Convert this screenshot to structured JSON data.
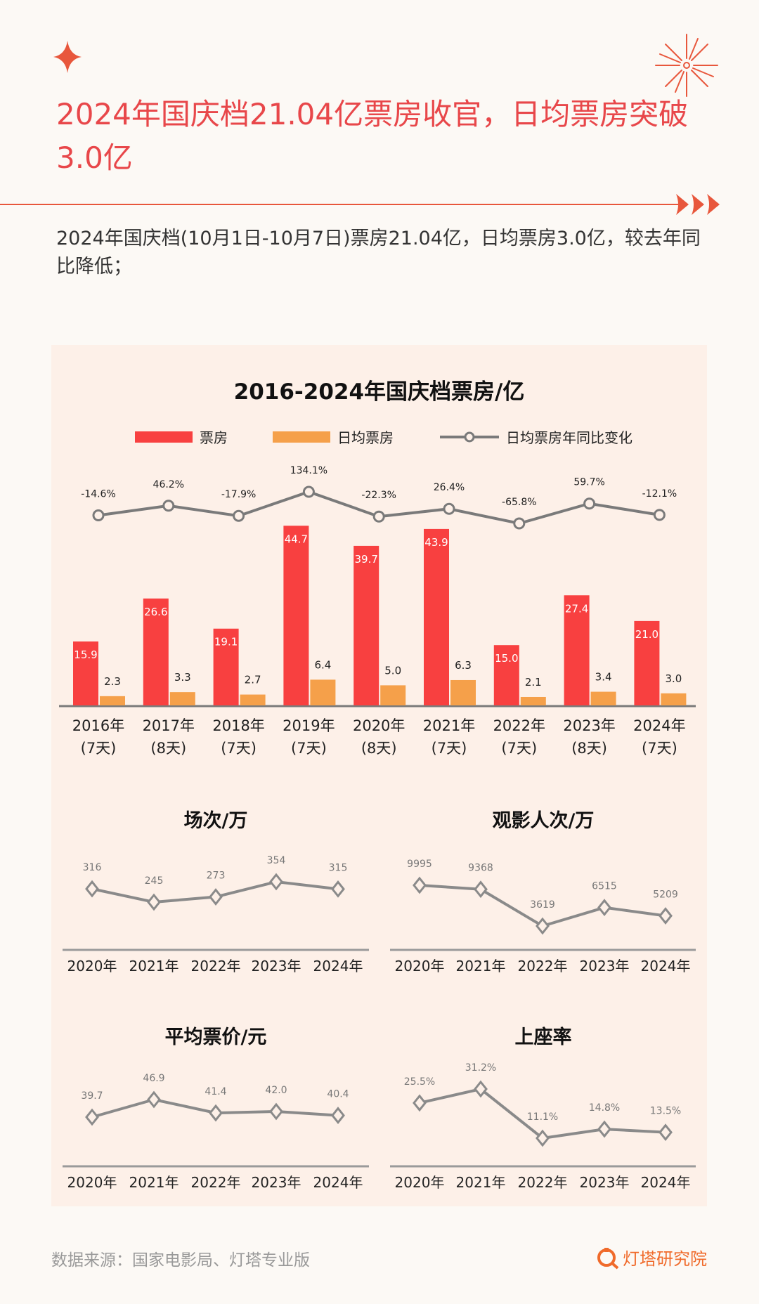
{
  "header": {
    "title": "2024年国庆档21.04亿票房收官，日均票房突破3.0亿",
    "subtitle": "2024年国庆档(10月1日-10月7日)票房21.04亿，日均票房3.0亿，较去年同比降低；"
  },
  "colors": {
    "accent": "#e8474a",
    "bar_total": "#f84040",
    "bar_daily": "#f5a04a",
    "line": "#7a7a7a",
    "panel": "#fdf0e8"
  },
  "chart_data": [
    {
      "type": "bar",
      "title": "2016-2024年国庆档票房/亿",
      "legend": [
        "票房",
        "日均票房",
        "日均票房年同比变化"
      ],
      "categories": [
        "2016年",
        "2017年",
        "2018年",
        "2019年",
        "2020年",
        "2021年",
        "2022年",
        "2023年",
        "2024年"
      ],
      "days": [
        "(7天)",
        "(8天)",
        "(7天)",
        "(7天)",
        "(8天)",
        "(7天)",
        "(7天)",
        "(8天)",
        "(7天)"
      ],
      "series": [
        {
          "name": "票房",
          "values": [
            15.9,
            26.6,
            19.1,
            44.7,
            39.7,
            43.9,
            15.0,
            27.4,
            21.0
          ],
          "labels": [
            "15.9",
            "26.6",
            "19.1",
            "44.7",
            "39.7",
            "43.9",
            "15.0",
            "27.4",
            "21.0"
          ]
        },
        {
          "name": "日均票房",
          "values": [
            2.3,
            3.3,
            2.7,
            6.4,
            5.0,
            6.3,
            2.1,
            3.4,
            3.0
          ],
          "labels": [
            "2.3",
            "3.3",
            "2.7",
            "6.4",
            "5.0",
            "6.3",
            "2.1",
            "3.4",
            "3.0"
          ]
        },
        {
          "name": "日均票房年同比变化",
          "type": "line",
          "values": [
            -14.6,
            46.2,
            -17.9,
            134.1,
            -22.3,
            26.4,
            -65.8,
            59.7,
            -12.1
          ],
          "labels": [
            "-14.6%",
            "46.2%",
            "-17.9%",
            "134.1%",
            "-22.3%",
            "26.4%",
            "-65.8%",
            "59.7%",
            "-12.1%"
          ]
        }
      ]
    },
    {
      "type": "line",
      "title": "场次/万",
      "categories": [
        "2020年",
        "2021年",
        "2022年",
        "2023年",
        "2024年"
      ],
      "values": [
        316,
        245,
        273,
        354,
        315
      ],
      "labels": [
        "316",
        "245",
        "273",
        "354",
        "315"
      ]
    },
    {
      "type": "line",
      "title": "观影人次/万",
      "categories": [
        "2020年",
        "2021年",
        "2022年",
        "2023年",
        "2024年"
      ],
      "values": [
        9995,
        9368,
        3619,
        6515,
        5209
      ],
      "labels": [
        "9995",
        "9368",
        "3619",
        "6515",
        "5209"
      ]
    },
    {
      "type": "line",
      "title": "平均票价/元",
      "categories": [
        "2020年",
        "2021年",
        "2022年",
        "2023年",
        "2024年"
      ],
      "values": [
        39.7,
        46.9,
        41.4,
        42.0,
        40.4
      ],
      "labels": [
        "39.7",
        "46.9",
        "41.4",
        "42.0",
        "40.4"
      ]
    },
    {
      "type": "line",
      "title": "上座率",
      "categories": [
        "2020年",
        "2021年",
        "2022年",
        "2023年",
        "2024年"
      ],
      "values": [
        25.5,
        31.2,
        11.1,
        14.8,
        13.5
      ],
      "labels": [
        "25.5%",
        "31.2%",
        "11.1%",
        "14.8%",
        "13.5%"
      ]
    }
  ],
  "footer": {
    "source": "数据来源：国家电影局、灯塔专业版",
    "brand": "灯塔研究院"
  }
}
